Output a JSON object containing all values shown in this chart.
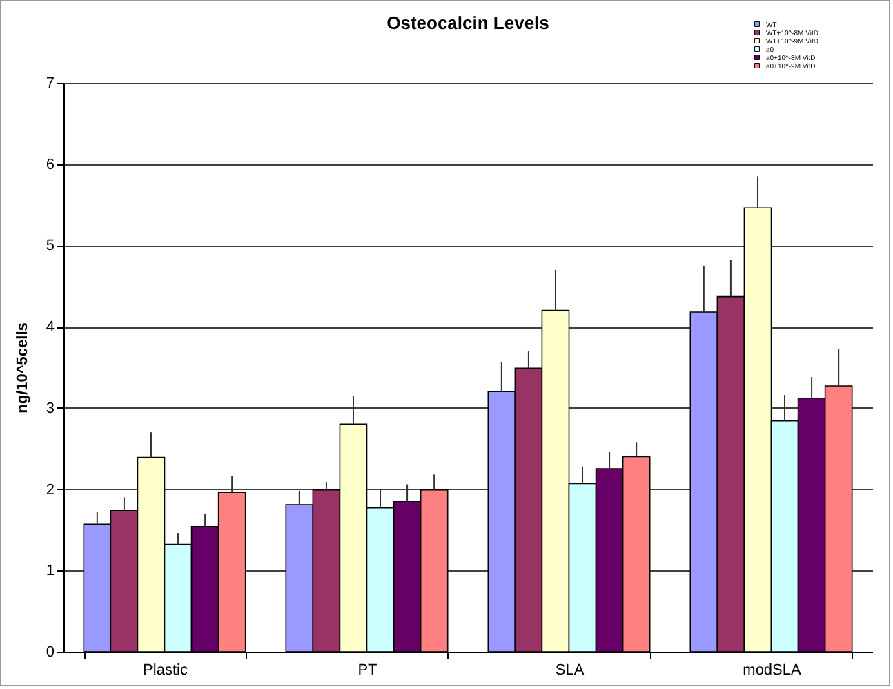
{
  "chart_data": {
    "type": "bar",
    "title": "Osteocalcin Levels",
    "ylabel": "ng/10^5cells",
    "categories": [
      "Plastic",
      "PT",
      "SLA",
      "modSLA"
    ],
    "series": [
      {
        "name": "WT",
        "color": "#9999ff",
        "values": [
          1.57,
          1.81,
          3.2,
          4.18
        ],
        "errors": [
          [
            1.57,
            1.72
          ],
          [
            1.81,
            1.98
          ],
          [
            3.2,
            3.56
          ],
          [
            4.18,
            4.75
          ]
        ]
      },
      {
        "name": "WT+10^-8M VitD",
        "color": "#993366",
        "values": [
          1.74,
          1.99,
          3.49,
          4.37
        ],
        "errors": [
          [
            1.74,
            1.9
          ],
          [
            1.99,
            2.09
          ],
          [
            3.49,
            3.7
          ],
          [
            4.37,
            4.82
          ]
        ]
      },
      {
        "name": "WT+10^-9M VitD",
        "color": "#ffffcc",
        "values": [
          2.39,
          2.8,
          4.2,
          5.46
        ],
        "errors": [
          [
            2.39,
            2.7
          ],
          [
            2.8,
            3.15
          ],
          [
            4.2,
            4.7
          ],
          [
            5.46,
            5.85
          ]
        ]
      },
      {
        "name": "a0",
        "color": "#ccffff",
        "values": [
          1.32,
          1.77,
          2.07,
          2.84
        ],
        "errors": [
          [
            1.32,
            1.46
          ],
          [
            1.77,
            2.0
          ],
          [
            2.07,
            2.28
          ],
          [
            2.84,
            3.16
          ]
        ]
      },
      {
        "name": "a0+10^-8M VitD",
        "color": "#660066",
        "values": [
          1.54,
          1.85,
          2.25,
          3.12
        ],
        "errors": [
          [
            1.54,
            1.7
          ],
          [
            1.85,
            2.06
          ],
          [
            2.25,
            2.46
          ],
          [
            3.12,
            3.38
          ]
        ]
      },
      {
        "name": "a0+10^-9M VitD",
        "color": "#ff8080",
        "values": [
          1.96,
          1.99,
          2.4,
          3.27
        ],
        "errors": [
          [
            1.96,
            2.16
          ],
          [
            1.99,
            2.18
          ],
          [
            2.4,
            2.58
          ],
          [
            3.27,
            3.72
          ]
        ]
      }
    ],
    "ylim": [
      0,
      7
    ],
    "yticks": [
      0,
      1,
      2,
      3,
      4,
      5,
      6,
      7
    ],
    "grid": "y",
    "legend": "top right"
  }
}
